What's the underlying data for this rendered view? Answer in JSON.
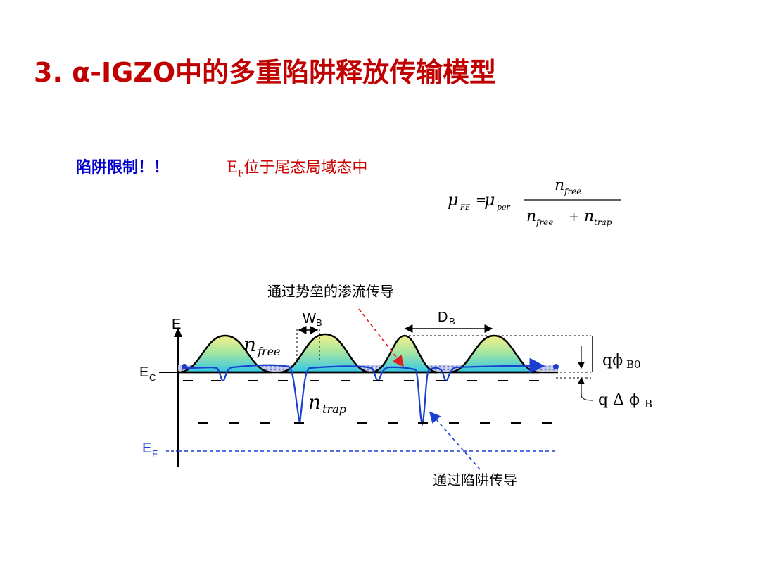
{
  "title": "3. α-IGZO中的多重陷阱释放传输模型",
  "note": {
    "trap_limited": "陷阱限制！！",
    "ef_prefix": "E",
    "ef_sub": "F",
    "ef_rest": "位于尾态局域态中"
  },
  "formula": {
    "mu": "μ",
    "fe": "FE",
    "equals": "=",
    "per": "per",
    "n": "n",
    "free": "free",
    "trap": "trap",
    "plus": "+"
  },
  "diagram": {
    "label_percolation": "通过势垒的渗流传导",
    "label_trap_conduction": "通过陷阱传导",
    "axis_e": "E",
    "ec_main": "E",
    "ec_sub": "C",
    "ef_main": "E",
    "ef_sub": "F",
    "wb_main": "W",
    "wb_sub": "B",
    "db_main": "D",
    "db_sub": "B",
    "n_free_n": "n",
    "n_free_sub": "free",
    "n_trap_n": "n",
    "n_trap_sub": "trap",
    "qphi_b0": "qϕ",
    "qphi_b0_sub": "B0",
    "q_delta_phi": "q Δ ϕ",
    "q_delta_phi_sub": "B"
  },
  "colors": {
    "title": "#c00000",
    "note_blue": "#0000cc",
    "note_red": "#cc0000",
    "ef_line": "#1f3fd6",
    "carrier_line": "#1a3fd0",
    "arrow_red": "#e02020"
  }
}
